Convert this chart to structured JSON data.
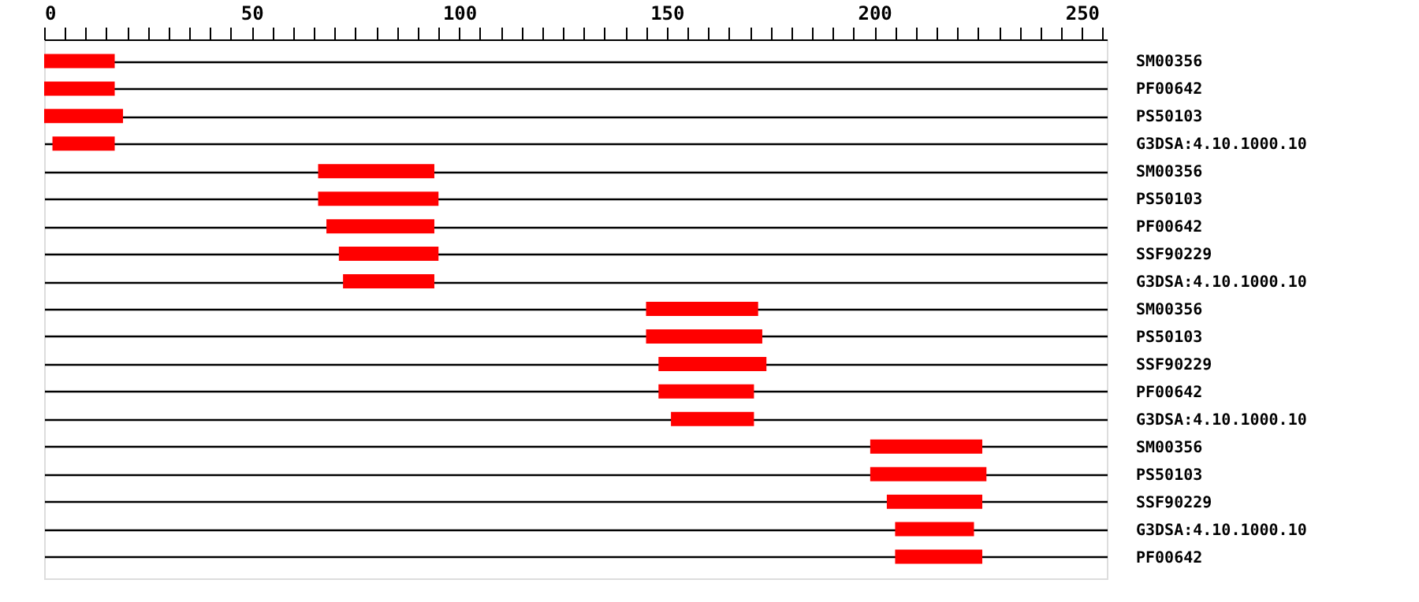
{
  "chart_data": {
    "type": "bar",
    "orientation": "horizontal",
    "categories": [
      "SM00356",
      "PF00642",
      "PS50103",
      "G3DSA:4.10.1000.10",
      "SM00356",
      "PS50103",
      "PF00642",
      "SSF90229",
      "G3DSA:4.10.1000.10",
      "SM00356",
      "PS50103",
      "SSF90229",
      "PF00642",
      "G3DSA:4.10.1000.10",
      "SM00356",
      "PS50103",
      "SSF90229",
      "G3DSA:4.10.1000.10",
      "PF00642"
    ],
    "base": [
      0,
      0,
      0,
      2,
      66,
      66,
      68,
      71,
      72,
      145,
      145,
      148,
      148,
      151,
      199,
      199,
      203,
      205,
      205
    ],
    "values": [
      17,
      17,
      19,
      15,
      28,
      29,
      26,
      24,
      22,
      27,
      28,
      26,
      23,
      20,
      27,
      28,
      23,
      19,
      21
    ],
    "color": "#ff0000",
    "xlim": [
      0,
      256
    ],
    "xticks": [
      0,
      {
        "value": 5,
        "label": null
      },
      {
        "value": 10,
        "label": null
      },
      {
        "value": 15,
        "label": null
      },
      {
        "value": 20,
        "label": null
      },
      {
        "value": 25,
        "label": null
      },
      {
        "value": 30,
        "label": null
      },
      {
        "value": 35,
        "label": null
      },
      {
        "value": 40,
        "label": null
      },
      {
        "value": 45,
        "label": null
      },
      50,
      {
        "value": 55,
        "label": null
      },
      {
        "value": 60,
        "label": null
      },
      {
        "value": 65,
        "label": null
      },
      {
        "value": 70,
        "label": null
      },
      {
        "value": 75,
        "label": null
      },
      {
        "value": 80,
        "label": null
      },
      {
        "value": 85,
        "label": null
      },
      {
        "value": 90,
        "label": null
      },
      {
        "value": 95,
        "label": null
      },
      100,
      {
        "value": 105,
        "label": null
      },
      {
        "value": 110,
        "label": null
      },
      {
        "value": 115,
        "label": null
      },
      {
        "value": 120,
        "label": null
      },
      {
        "value": 125,
        "label": null
      },
      {
        "value": 130,
        "label": null
      },
      {
        "value": 135,
        "label": null
      },
      {
        "value": 140,
        "label": null
      },
      {
        "value": 145,
        "label": null
      },
      150,
      {
        "value": 155,
        "label": null
      },
      {
        "value": 160,
        "label": null
      },
      {
        "value": 165,
        "label": null
      },
      {
        "value": 170,
        "label": null
      },
      {
        "value": 175,
        "label": null
      },
      {
        "value": 180,
        "label": null
      },
      {
        "value": 185,
        "label": null
      },
      {
        "value": 190,
        "label": null
      },
      {
        "value": 195,
        "label": null
      },
      200,
      {
        "value": 205,
        "label": null
      },
      {
        "value": 210,
        "label": null
      },
      {
        "value": 215,
        "label": null
      },
      {
        "value": 220,
        "label": null
      },
      {
        "value": 225,
        "label": null
      },
      {
        "value": 230,
        "label": null
      },
      {
        "value": 235,
        "label": null
      },
      {
        "value": 240,
        "label": null
      },
      {
        "value": 245,
        "label": null
      },
      250,
      {
        "value": 255,
        "label": null
      }
    ],
    "grid": "y"
  }
}
